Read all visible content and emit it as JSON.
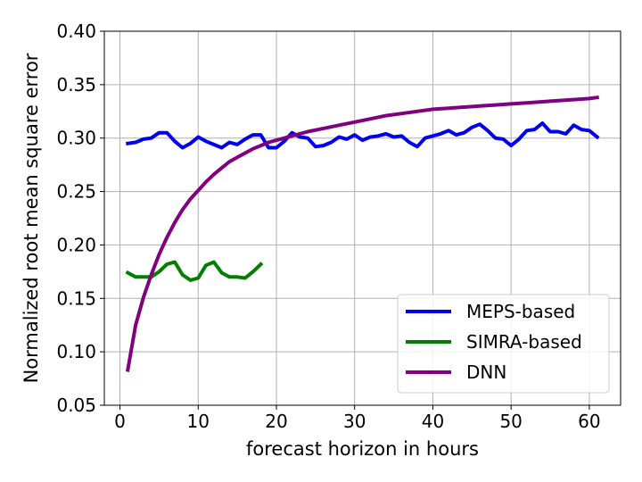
{
  "chart_data": {
    "type": "line",
    "title": "",
    "xlabel": "forecast horizon in hours",
    "ylabel": "Normalized root mean square error",
    "xlim": [
      -2,
      64
    ],
    "ylim": [
      0.05,
      0.4
    ],
    "xticks": [
      0,
      10,
      20,
      30,
      40,
      50,
      60
    ],
    "xtick_labels": [
      "0",
      "10",
      "20",
      "30",
      "40",
      "50",
      "60"
    ],
    "yticks": [
      0.05,
      0.1,
      0.15,
      0.2,
      0.25,
      0.3,
      0.35,
      0.4
    ],
    "ytick_labels": [
      "0.05",
      "0.10",
      "0.15",
      "0.20",
      "0.25",
      "0.30",
      "0.35",
      "0.40"
    ],
    "grid": true,
    "legend_position": "lower-right",
    "series": [
      {
        "name": "MEPS-based",
        "color": "#0000ee",
        "x": [
          1,
          2,
          3,
          4,
          5,
          6,
          7,
          8,
          9,
          10,
          11,
          12,
          13,
          14,
          15,
          16,
          17,
          18,
          19,
          20,
          21,
          22,
          23,
          24,
          25,
          26,
          27,
          28,
          29,
          30,
          31,
          32,
          33,
          34,
          35,
          36,
          37,
          38,
          39,
          40,
          41,
          42,
          43,
          44,
          45,
          46,
          47,
          48,
          49,
          50,
          51,
          52,
          53,
          54,
          55,
          56,
          57,
          58,
          59,
          60,
          61
        ],
        "y": [
          0.295,
          0.296,
          0.299,
          0.3,
          0.305,
          0.305,
          0.297,
          0.291,
          0.295,
          0.301,
          0.297,
          0.294,
          0.291,
          0.296,
          0.294,
          0.299,
          0.303,
          0.303,
          0.291,
          0.291,
          0.297,
          0.305,
          0.301,
          0.3,
          0.292,
          0.293,
          0.296,
          0.301,
          0.299,
          0.303,
          0.298,
          0.301,
          0.302,
          0.304,
          0.301,
          0.302,
          0.296,
          0.292,
          0.3,
          0.302,
          0.304,
          0.307,
          0.303,
          0.305,
          0.31,
          0.313,
          0.307,
          0.3,
          0.299,
          0.293,
          0.299,
          0.307,
          0.308,
          0.314,
          0.306,
          0.306,
          0.304,
          0.312,
          0.308,
          0.307,
          0.301
        ]
      },
      {
        "name": "SIMRA-based",
        "color": "#007f00",
        "x": [
          1,
          2,
          3,
          4,
          5,
          6,
          7,
          8,
          9,
          10,
          11,
          12,
          13,
          14,
          15,
          16,
          17,
          18
        ],
        "y": [
          0.174,
          0.17,
          0.17,
          0.17,
          0.175,
          0.182,
          0.184,
          0.172,
          0.167,
          0.169,
          0.181,
          0.184,
          0.174,
          0.17,
          0.17,
          0.169,
          0.175,
          0.182
        ]
      },
      {
        "name": "DNN",
        "color": "#800080",
        "x": [
          1,
          2,
          3,
          4,
          5,
          6,
          7,
          8,
          9,
          10,
          11,
          12,
          13,
          14,
          15,
          16,
          17,
          18,
          19,
          20,
          22,
          24,
          26,
          28,
          30,
          32,
          34,
          36,
          38,
          40,
          42,
          44,
          46,
          48,
          50,
          52,
          54,
          56,
          58,
          60,
          61
        ],
        "y": [
          0.083,
          0.125,
          0.151,
          0.172,
          0.191,
          0.207,
          0.221,
          0.233,
          0.243,
          0.251,
          0.259,
          0.266,
          0.272,
          0.278,
          0.282,
          0.286,
          0.29,
          0.293,
          0.296,
          0.298,
          0.302,
          0.306,
          0.309,
          0.312,
          0.315,
          0.318,
          0.321,
          0.323,
          0.325,
          0.327,
          0.328,
          0.329,
          0.33,
          0.331,
          0.332,
          0.333,
          0.334,
          0.335,
          0.336,
          0.337,
          0.338
        ]
      }
    ]
  }
}
